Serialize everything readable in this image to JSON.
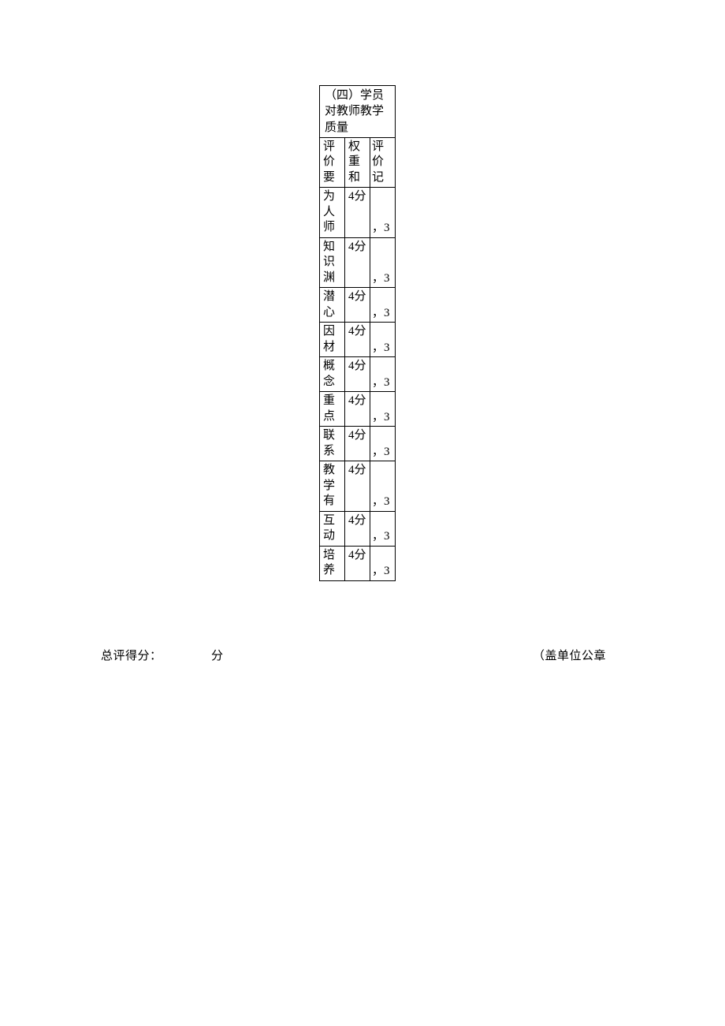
{
  "table": {
    "title": "（四）学员对教师教学质量",
    "headers": {
      "col1": "评价要",
      "col2": "权重和",
      "col3": "评价记"
    },
    "rows": [
      {
        "criterion": "为人师",
        "weight": "4分",
        "score": "，3",
        "height": "tall"
      },
      {
        "criterion": "知识渊",
        "weight": "4分",
        "score": "，3",
        "height": "tall"
      },
      {
        "criterion": "潜心",
        "weight": "4分",
        "score": "，3",
        "height": "short"
      },
      {
        "criterion": "因材",
        "weight": "4分",
        "score": "，3",
        "height": "tall"
      },
      {
        "criterion": "概念",
        "weight": "4分",
        "score": "，3",
        "height": "tall"
      },
      {
        "criterion": "重点",
        "weight": "4分",
        "score": "，3",
        "height": "short"
      },
      {
        "criterion": "联系",
        "weight": "4分",
        "score": "，3",
        "height": "short"
      },
      {
        "criterion": "教学有",
        "weight": "4分",
        "score": "，3",
        "height": "tall"
      },
      {
        "criterion": "互动",
        "weight": "4分",
        "score": "，3",
        "height": "short"
      },
      {
        "criterion": "培养",
        "weight": "4分",
        "score": "，3",
        "height": "short"
      }
    ]
  },
  "footer": {
    "score_label": "总评得分：",
    "score_unit": "分",
    "seal_label": "（盖单位公章"
  },
  "colors": {
    "border": "#000000",
    "text": "#000000",
    "background": "#ffffff"
  }
}
